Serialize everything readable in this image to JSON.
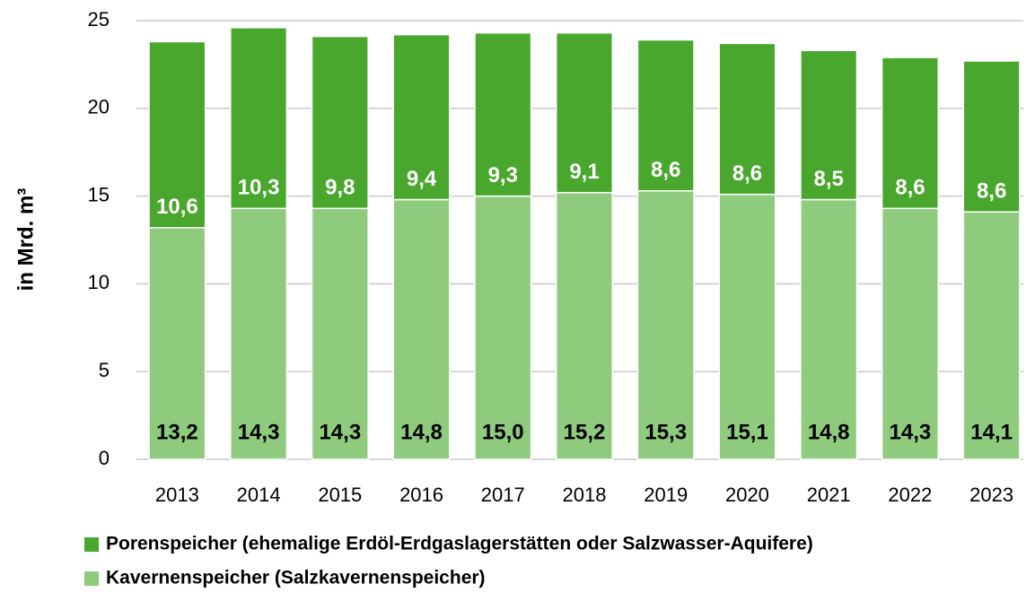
{
  "chart_data": {
    "type": "stacked_bar",
    "y_label": "in Mrd. m³",
    "categories": [
      "2013",
      "2014",
      "2015",
      "2016",
      "2017",
      "2018",
      "2019",
      "2020",
      "2021",
      "2022",
      "2023"
    ],
    "series": [
      {
        "name": "Kavernenspeicher (Salzkavernenspeicher)",
        "color": "#8fcb7d",
        "values": [
          13.2,
          14.3,
          14.3,
          14.8,
          15.0,
          15.2,
          15.3,
          15.1,
          14.8,
          14.3,
          14.1
        ],
        "value_labels": [
          "13,2",
          "14,3",
          "14,3",
          "14,8",
          "15,0",
          "15,2",
          "15,3",
          "15,1",
          "14,8",
          "14,3",
          "14,1"
        ]
      },
      {
        "name": "Porenspeicher (ehemalige Erdöl-Erdgaslagerstätten oder Salzwasser-Aquifere)",
        "color": "#48a72c",
        "values": [
          10.6,
          10.3,
          9.8,
          9.4,
          9.3,
          9.1,
          8.6,
          8.6,
          8.5,
          8.6,
          8.6
        ],
        "value_labels": [
          "10,6",
          "10,3",
          "9,8",
          "9,4",
          "9,3",
          "9,1",
          "8,6",
          "8,6",
          "8,5",
          "8,6",
          "8,6"
        ]
      }
    ],
    "ylim": [
      0,
      25
    ],
    "yticks": [
      0,
      5,
      10,
      15,
      20,
      25
    ],
    "grid": true
  }
}
